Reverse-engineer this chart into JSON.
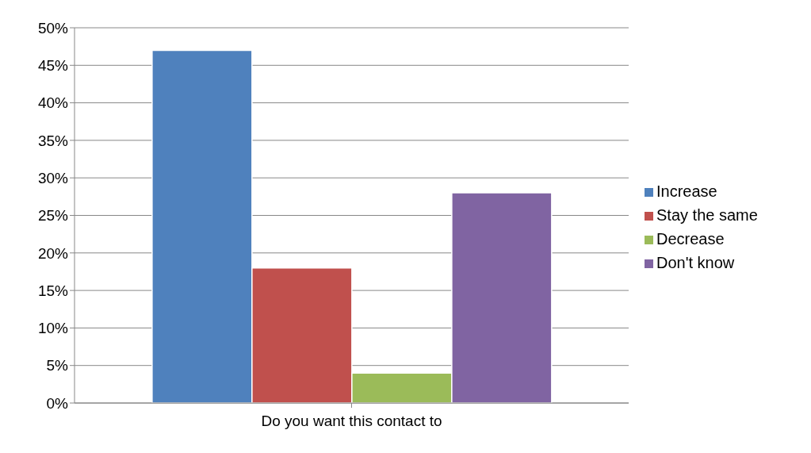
{
  "chart_data": {
    "type": "bar",
    "categories": [
      "Do you want this contact to"
    ],
    "series": [
      {
        "name": "Increase",
        "color": "#4f81bd",
        "values": [
          47
        ]
      },
      {
        "name": "Stay the same",
        "color": "#c0504d",
        "values": [
          18
        ]
      },
      {
        "name": "Decrease",
        "color": "#9bbb59",
        "values": [
          4
        ]
      },
      {
        "name": "Don't know",
        "color": "#8064a2",
        "values": [
          28
        ]
      }
    ],
    "ylim": [
      0,
      50
    ],
    "yticks": [
      {
        "value": 0,
        "label": "0%"
      },
      {
        "value": 5,
        "label": "5%"
      },
      {
        "value": 10,
        "label": "10%"
      },
      {
        "value": 15,
        "label": "15%"
      },
      {
        "value": 20,
        "label": "20%"
      },
      {
        "value": 25,
        "label": "25%"
      },
      {
        "value": 30,
        "label": "30%"
      },
      {
        "value": 35,
        "label": "35%"
      },
      {
        "value": 40,
        "label": "40%"
      },
      {
        "value": 45,
        "label": "45%"
      },
      {
        "value": 50,
        "label": "50%"
      }
    ],
    "grid": "y",
    "legend": "right"
  }
}
